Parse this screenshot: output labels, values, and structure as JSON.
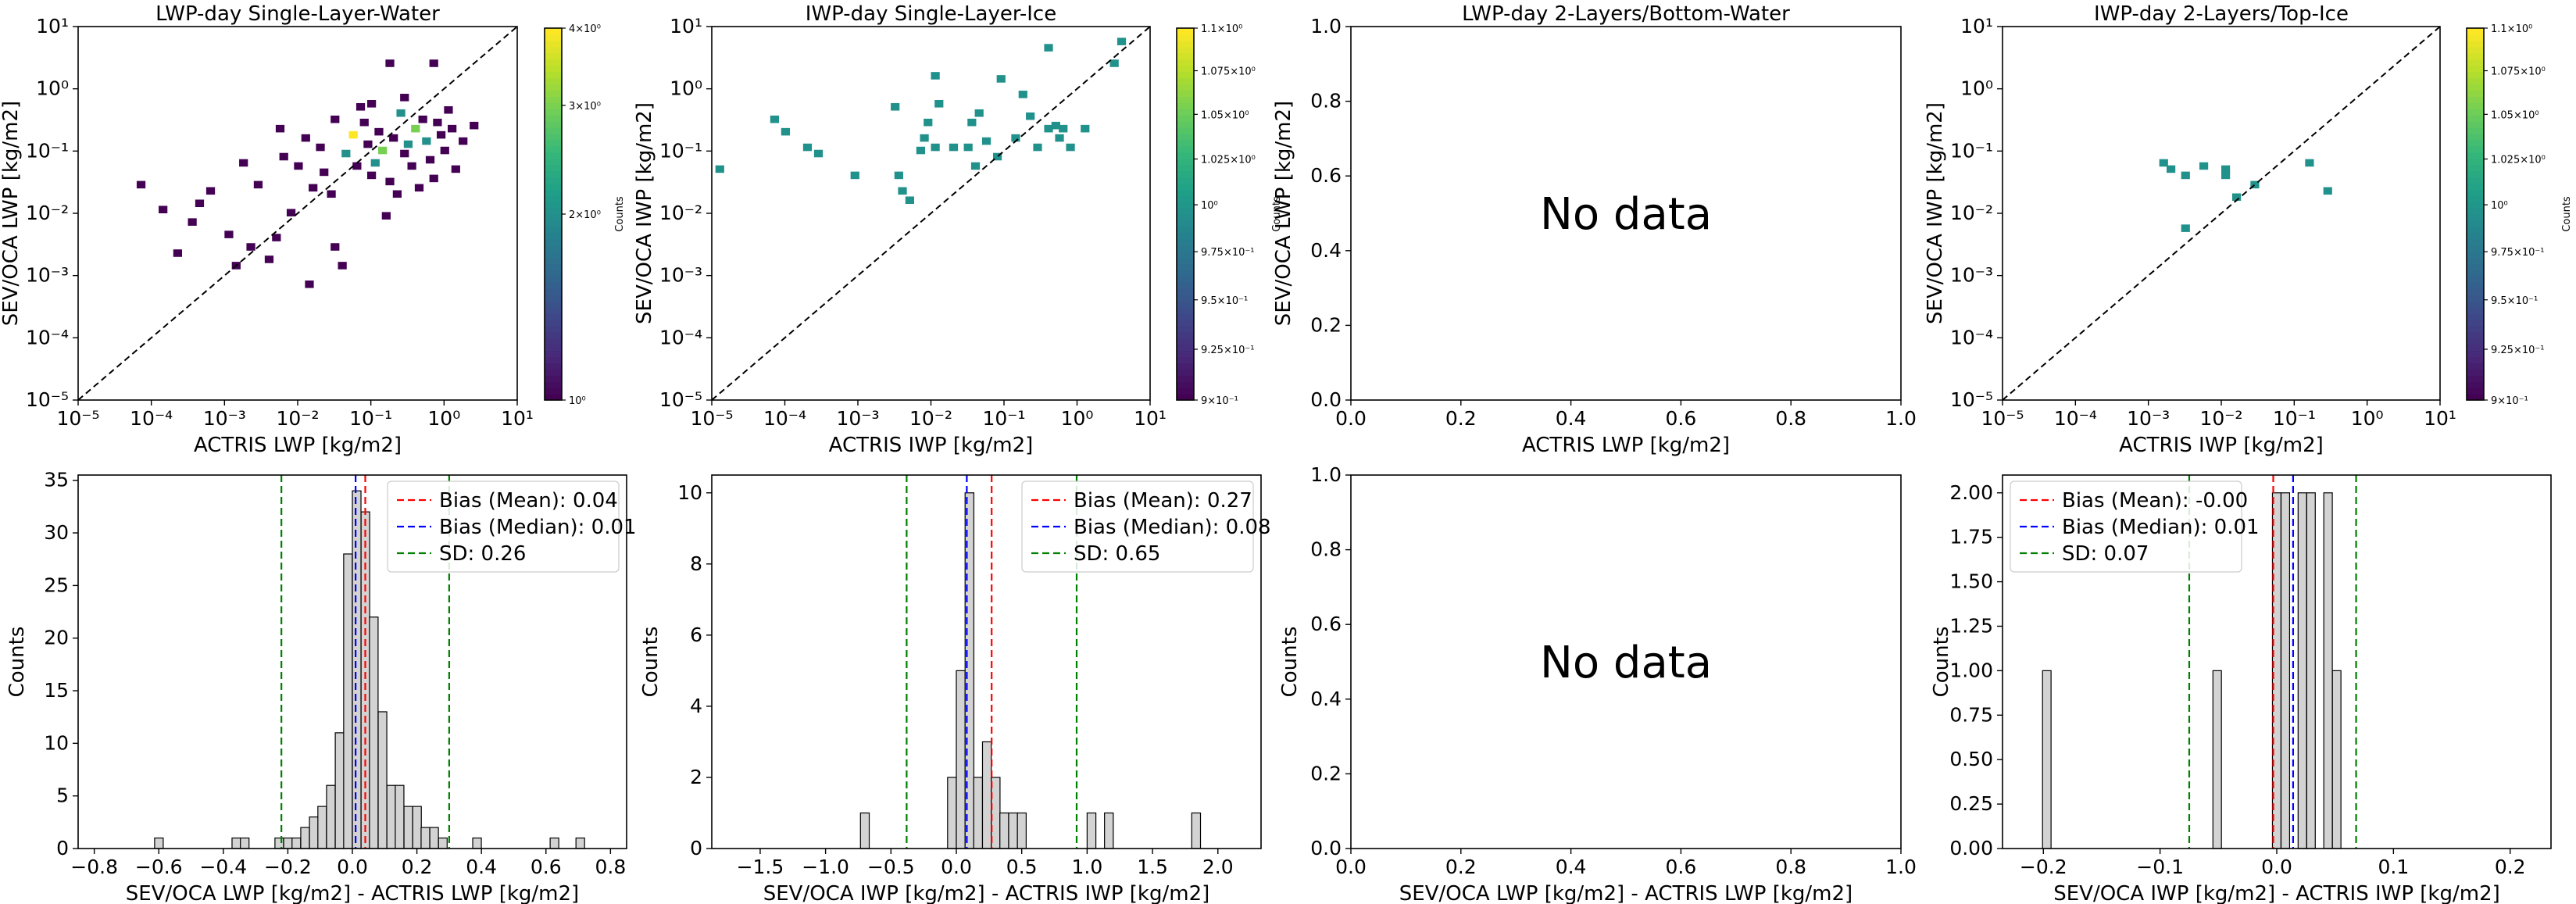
{
  "colors": {
    "viridis": [
      "#440154",
      "#482878",
      "#3e4989",
      "#31688e",
      "#26828e",
      "#1f9e89",
      "#35b779",
      "#6ece58",
      "#b5de2b",
      "#fde725"
    ],
    "mean_line": "#ff0000",
    "median_line": "#0000ff",
    "sd_line": "#008000",
    "hist_fill": "#d3d3d3",
    "hist_edge": "#000000",
    "single_count": "#21918c"
  },
  "chart_data": [
    {
      "id": "p1",
      "type": "heatmap",
      "title": "LWP-day Single-Layer-Water",
      "xlabel": "ACTRIS LWP [kg/m2]",
      "ylabel": "SEV/OCA LWP [kg/m2]",
      "scale": "log",
      "xlim": [
        -5,
        1
      ],
      "ylim": [
        -5,
        1
      ],
      "xtick_labels": [
        "10⁻⁵",
        "10⁻⁴",
        "10⁻³",
        "10⁻²",
        "10⁻¹",
        "10⁰",
        "10¹"
      ],
      "ytick_labels": [
        "10⁻⁵",
        "10⁻⁴",
        "10⁻³",
        "10⁻²",
        "10⁻¹",
        "10⁰",
        "10¹"
      ],
      "identity_line": true,
      "bin_width_log10": 0.12,
      "cells": [
        [
          -4.2,
          -1.6,
          1
        ],
        [
          -3.9,
          -2.0,
          1
        ],
        [
          -3.7,
          -2.7,
          1
        ],
        [
          -3.5,
          -2.2,
          1
        ],
        [
          -3.4,
          -1.9,
          1
        ],
        [
          -3.25,
          -1.7,
          1
        ],
        [
          -3.0,
          -2.4,
          1
        ],
        [
          -2.9,
          -2.9,
          1
        ],
        [
          -2.7,
          -2.6,
          1
        ],
        [
          -2.6,
          -1.6,
          1
        ],
        [
          -2.45,
          -2.8,
          1
        ],
        [
          -2.35,
          -2.45,
          1
        ],
        [
          -2.25,
          -1.15,
          1
        ],
        [
          -2.15,
          -2.05,
          1
        ],
        [
          -2.05,
          -1.3,
          1
        ],
        [
          -1.95,
          -0.85,
          1
        ],
        [
          -1.85,
          -1.65,
          1
        ],
        [
          -1.75,
          -1.0,
          1
        ],
        [
          -1.7,
          -1.4,
          1
        ],
        [
          -1.6,
          -1.75,
          1
        ],
        [
          -1.55,
          -2.6,
          1
        ],
        [
          -1.45,
          -2.9,
          1
        ],
        [
          -1.4,
          -1.1,
          2
        ],
        [
          -1.3,
          -0.8,
          4
        ],
        [
          -1.25,
          -1.3,
          1
        ],
        [
          -1.15,
          -0.6,
          1
        ],
        [
          -1.1,
          -0.95,
          1
        ],
        [
          -1.05,
          -1.45,
          1
        ],
        [
          -1.0,
          -1.25,
          2
        ],
        [
          -0.95,
          -0.75,
          1
        ],
        [
          -0.9,
          -1.05,
          3
        ],
        [
          -0.85,
          -2.1,
          1
        ],
        [
          -0.8,
          -1.55,
          1
        ],
        [
          -0.75,
          -0.85,
          1
        ],
        [
          -0.7,
          -1.75,
          1
        ],
        [
          -0.65,
          -0.45,
          2
        ],
        [
          -0.6,
          -1.1,
          1
        ],
        [
          -0.55,
          -0.95,
          2
        ],
        [
          -0.5,
          -1.3,
          1
        ],
        [
          -0.45,
          -0.7,
          3
        ],
        [
          -0.4,
          -1.65,
          1
        ],
        [
          -0.35,
          -0.55,
          1
        ],
        [
          -0.3,
          -0.9,
          2
        ],
        [
          -0.25,
          -1.2,
          1
        ],
        [
          -0.2,
          -1.5,
          1
        ],
        [
          -0.15,
          -0.6,
          1
        ],
        [
          -0.1,
          -0.8,
          1
        ],
        [
          -0.05,
          -1.05,
          1
        ],
        [
          0.0,
          -0.4,
          1
        ],
        [
          0.05,
          -0.7,
          1
        ],
        [
          0.1,
          -1.35,
          1
        ],
        [
          0.2,
          -0.9,
          1
        ],
        [
          0.35,
          -0.65,
          1
        ],
        [
          -0.8,
          0.35,
          1
        ],
        [
          -1.05,
          -0.3,
          1
        ],
        [
          -1.55,
          -0.55,
          1
        ],
        [
          -2.3,
          -0.7,
          1
        ],
        [
          -1.9,
          -3.2,
          1
        ],
        [
          -2.8,
          -1.25,
          1
        ],
        [
          -0.2,
          0.35,
          1
        ],
        [
          -0.6,
          -0.2,
          1
        ],
        [
          -1.2,
          -0.35,
          1
        ]
      ],
      "colorbar": {
        "label": "Counts",
        "scale": "log",
        "range": [
          1,
          4
        ],
        "tick_values": [
          1,
          2,
          3,
          4
        ],
        "tick_labels": [
          "10⁰",
          "2×10⁰",
          "3×10⁰",
          "4×10⁰"
        ]
      }
    },
    {
      "id": "p2",
      "type": "heatmap",
      "title": "IWP-day Single-Layer-Ice",
      "xlabel": "ACTRIS IWP [kg/m2]",
      "ylabel": "SEV/OCA IWP [kg/m2]",
      "scale": "log",
      "xlim": [
        -5,
        1
      ],
      "ylim": [
        -5,
        1
      ],
      "xtick_labels": [
        "10⁻⁵",
        "10⁻⁴",
        "10⁻³",
        "10⁻²",
        "10⁻¹",
        "10⁰",
        "10¹"
      ],
      "ytick_labels": [
        "10⁻⁵",
        "10⁻⁴",
        "10⁻³",
        "10⁻²",
        "10⁻¹",
        "10⁰",
        "10¹"
      ],
      "identity_line": true,
      "bin_width_log10": 0.12,
      "cells": [
        [
          -4.95,
          -1.35,
          1
        ],
        [
          -4.2,
          -0.55,
          1
        ],
        [
          -4.05,
          -0.75,
          1
        ],
        [
          -3.75,
          -1.0,
          1
        ],
        [
          -3.6,
          -1.1,
          1
        ],
        [
          -3.1,
          -1.45,
          1
        ],
        [
          -2.55,
          -0.35,
          1
        ],
        [
          -2.5,
          -1.45,
          1
        ],
        [
          -2.45,
          -1.7,
          1
        ],
        [
          -2.35,
          -1.85,
          1
        ],
        [
          -2.2,
          -1.05,
          1
        ],
        [
          -2.15,
          -0.85,
          1
        ],
        [
          -2.1,
          -0.6,
          1
        ],
        [
          -2.0,
          -1.0,
          1
        ],
        [
          -2.0,
          0.15,
          1
        ],
        [
          -1.95,
          -0.3,
          1
        ],
        [
          -1.75,
          -1.0,
          1
        ],
        [
          -1.55,
          -1.0,
          1
        ],
        [
          -1.5,
          -0.6,
          1
        ],
        [
          -1.45,
          -1.3,
          1
        ],
        [
          -1.4,
          -0.45,
          1
        ],
        [
          -1.3,
          -0.9,
          1
        ],
        [
          -1.15,
          -1.15,
          1
        ],
        [
          -1.1,
          0.1,
          1
        ],
        [
          -0.9,
          -0.85,
          1
        ],
        [
          -0.8,
          -0.15,
          1
        ],
        [
          -0.7,
          -0.5,
          1
        ],
        [
          -0.6,
          -1.0,
          1
        ],
        [
          -0.45,
          0.6,
          1
        ],
        [
          -0.45,
          -0.7,
          1
        ],
        [
          -0.35,
          -0.65,
          1
        ],
        [
          -0.3,
          -0.85,
          1
        ],
        [
          -0.25,
          -0.7,
          1
        ],
        [
          -0.15,
          -1.0,
          1
        ],
        [
          0.05,
          -0.7,
          1
        ],
        [
          0.45,
          0.35,
          1
        ],
        [
          0.55,
          0.7,
          1
        ]
      ],
      "colorbar": {
        "label": "Counts",
        "scale": "log",
        "range": [
          0.9,
          1.1
        ],
        "tick_values": [
          0.9,
          0.925,
          0.95,
          0.975,
          1.0,
          1.025,
          1.05,
          1.075,
          1.1
        ],
        "tick_labels": [
          "9×10⁻¹",
          "9.25×10⁻¹",
          "9.5×10⁻¹",
          "9.75×10⁻¹",
          "10⁰",
          "1.025×10⁰",
          "1.05×10⁰",
          "1.075×10⁰",
          "1.1×10⁰"
        ]
      }
    },
    {
      "id": "p3",
      "type": "heatmap",
      "title": "LWP-day 2-Layers/Bottom-Water",
      "xlabel": "ACTRIS LWP [kg/m2]",
      "ylabel": "SEV/OCA LWP [kg/m2]",
      "scale": "linear",
      "xlim": [
        0,
        1
      ],
      "ylim": [
        0,
        1
      ],
      "xtick_labels": [
        "0.0",
        "0.2",
        "0.4",
        "0.6",
        "0.8",
        "1.0"
      ],
      "ytick_labels": [
        "0.0",
        "0.2",
        "0.4",
        "0.6",
        "0.8",
        "1.0"
      ],
      "annotation": "No data",
      "cells": []
    },
    {
      "id": "p4",
      "type": "heatmap",
      "title": "IWP-day 2-Layers/Top-Ice",
      "xlabel": "ACTRIS IWP [kg/m2]",
      "ylabel": "SEV/OCA IWP [kg/m2]",
      "scale": "log",
      "xlim": [
        -5,
        1
      ],
      "ylim": [
        -5,
        1
      ],
      "xtick_labels": [
        "10⁻⁵",
        "10⁻⁴",
        "10⁻³",
        "10⁻²",
        "10⁻¹",
        "10⁰",
        "10¹"
      ],
      "ytick_labels": [
        "10⁻⁵",
        "10⁻⁴",
        "10⁻³",
        "10⁻²",
        "10⁻¹",
        "10⁰",
        "10¹"
      ],
      "identity_line": true,
      "bin_width_log10": 0.12,
      "cells": [
        [
          -2.85,
          -1.25,
          1
        ],
        [
          -2.75,
          -1.35,
          1
        ],
        [
          -2.55,
          -1.45,
          1
        ],
        [
          -2.55,
          -2.3,
          1
        ],
        [
          -2.3,
          -1.3,
          1
        ],
        [
          -2.0,
          -1.35,
          1
        ],
        [
          -2.0,
          -1.45,
          1
        ],
        [
          -1.85,
          -1.8,
          1
        ],
        [
          -1.6,
          -1.6,
          1
        ],
        [
          -0.85,
          -1.25,
          1
        ],
        [
          -0.6,
          -1.7,
          1
        ]
      ],
      "colorbar": {
        "label": "Counts",
        "scale": "log",
        "range": [
          0.9,
          1.1
        ],
        "tick_values": [
          0.9,
          0.925,
          0.95,
          0.975,
          1.0,
          1.025,
          1.05,
          1.075,
          1.1
        ],
        "tick_labels": [
          "9×10⁻¹",
          "9.25×10⁻¹",
          "9.5×10⁻¹",
          "9.75×10⁻¹",
          "10⁰",
          "1.025×10⁰",
          "1.05×10⁰",
          "1.075×10⁰",
          "1.1×10⁰"
        ]
      }
    },
    {
      "id": "p5",
      "type": "bar",
      "xlabel": "SEV/OCA LWP [kg/m2] - ACTRIS LWP [kg/m2]",
      "ylabel": "Counts",
      "xlim": [
        -0.85,
        0.85
      ],
      "ylim": [
        0,
        35.5
      ],
      "xticks": [
        -0.8,
        -0.6,
        -0.4,
        -0.2,
        0.0,
        0.2,
        0.4,
        0.6,
        0.8
      ],
      "xtick_labels": [
        "−0.8",
        "−0.6",
        "−0.4",
        "−0.2",
        "0.0",
        "0.2",
        "0.4",
        "0.6",
        "0.8"
      ],
      "yticks": [
        0,
        5,
        10,
        15,
        20,
        25,
        30,
        35
      ],
      "ytick_labels": [
        "0",
        "5",
        "10",
        "15",
        "20",
        "25",
        "30",
        "35"
      ],
      "bin_width": 0.0267,
      "bins": [
        [
          -0.613,
          1
        ],
        [
          -0.373,
          1
        ],
        [
          -0.347,
          1
        ],
        [
          -0.24,
          1
        ],
        [
          -0.213,
          1
        ],
        [
          -0.187,
          1
        ],
        [
          -0.16,
          2
        ],
        [
          -0.133,
          3
        ],
        [
          -0.107,
          4
        ],
        [
          -0.08,
          6
        ],
        [
          -0.053,
          11
        ],
        [
          -0.027,
          28
        ],
        [
          0.0,
          34
        ],
        [
          0.027,
          32
        ],
        [
          0.053,
          22
        ],
        [
          0.08,
          13
        ],
        [
          0.107,
          6
        ],
        [
          0.133,
          6
        ],
        [
          0.16,
          4
        ],
        [
          0.187,
          4
        ],
        [
          0.213,
          2
        ],
        [
          0.24,
          2
        ],
        [
          0.267,
          1
        ],
        [
          0.373,
          1
        ],
        [
          0.613,
          1
        ],
        [
          0.693,
          1
        ]
      ],
      "lines": [
        {
          "label": "Bias (Mean): 0.04",
          "x": 0.04,
          "role": "mean"
        },
        {
          "label": "Bias (Median): 0.01",
          "x": 0.01,
          "role": "median"
        },
        {
          "label": "SD: 0.26",
          "x": -0.22,
          "role": "sd"
        },
        {
          "x": 0.3,
          "role": "sd"
        }
      ],
      "legend": "upper right"
    },
    {
      "id": "p6",
      "type": "bar",
      "xlabel": "SEV/OCA IWP [kg/m2] - ACTRIS IWP [kg/m2]",
      "ylabel": "Counts",
      "xlim": [
        -1.87,
        2.33
      ],
      "ylim": [
        0,
        10.5
      ],
      "xticks": [
        -1.5,
        -1.0,
        -0.5,
        0.0,
        0.5,
        1.0,
        1.5,
        2.0
      ],
      "xtick_labels": [
        "−1.5",
        "−1.0",
        "−0.5",
        "0.0",
        "0.5",
        "1.0",
        "1.5",
        "2.0"
      ],
      "yticks": [
        0,
        2,
        4,
        6,
        8,
        10
      ],
      "ytick_labels": [
        "0",
        "2",
        "4",
        "6",
        "8",
        "10"
      ],
      "bin_width": 0.067,
      "bins": [
        [
          -0.733,
          1
        ],
        [
          -0.067,
          2
        ],
        [
          0.0,
          5
        ],
        [
          0.067,
          10
        ],
        [
          0.133,
          2
        ],
        [
          0.2,
          3
        ],
        [
          0.267,
          2
        ],
        [
          0.333,
          1
        ],
        [
          0.4,
          1
        ],
        [
          0.467,
          1
        ],
        [
          1.0,
          1
        ],
        [
          1.133,
          1
        ],
        [
          1.8,
          1
        ]
      ],
      "lines": [
        {
          "label": "Bias (Mean): 0.27",
          "x": 0.27,
          "role": "mean"
        },
        {
          "label": "Bias (Median): 0.08",
          "x": 0.08,
          "role": "median"
        },
        {
          "label": "SD: 0.65",
          "x": -0.38,
          "role": "sd"
        },
        {
          "x": 0.92,
          "role": "sd"
        }
      ],
      "legend": "upper right"
    },
    {
      "id": "p7",
      "type": "bar",
      "xlabel": "SEV/OCA LWP [kg/m2] - ACTRIS LWP [kg/m2]",
      "ylabel": "Counts",
      "xlim": [
        0,
        1
      ],
      "ylim": [
        0,
        1
      ],
      "xticks": [
        0,
        0.2,
        0.4,
        0.6,
        0.8,
        1.0
      ],
      "xtick_labels": [
        "0.0",
        "0.2",
        "0.4",
        "0.6",
        "0.8",
        "1.0"
      ],
      "yticks": [
        0,
        0.2,
        0.4,
        0.6,
        0.8,
        1.0
      ],
      "ytick_labels": [
        "0.0",
        "0.2",
        "0.4",
        "0.6",
        "0.8",
        "1.0"
      ],
      "annotation": "No data",
      "bins": [],
      "lines": []
    },
    {
      "id": "p8",
      "type": "bar",
      "xlabel": "SEV/OCA IWP [kg/m2] - ACTRIS IWP [kg/m2]",
      "ylabel": "Counts",
      "xlim": [
        -0.235,
        0.235
      ],
      "ylim": [
        0,
        2.1
      ],
      "xticks": [
        -0.2,
        -0.1,
        0.0,
        0.1,
        0.2
      ],
      "xtick_labels": [
        "−0.2",
        "−0.1",
        "0.0",
        "0.1",
        "0.2"
      ],
      "yticks": [
        0,
        0.25,
        0.5,
        0.75,
        1.0,
        1.25,
        1.5,
        1.75,
        2.0
      ],
      "ytick_labels": [
        "0.00",
        "0.25",
        "0.50",
        "0.75",
        "1.00",
        "1.25",
        "1.50",
        "1.75",
        "2.00"
      ],
      "bin_width": 0.0073,
      "bins": [
        [
          -0.2007,
          1
        ],
        [
          -0.0547,
          1
        ],
        [
          -0.0037,
          2
        ],
        [
          0.0037,
          2
        ],
        [
          0.0183,
          2
        ],
        [
          0.0257,
          2
        ],
        [
          0.0403,
          2
        ],
        [
          0.0477,
          1
        ]
      ],
      "lines": [
        {
          "label": "Bias (Mean): -0.00",
          "x": -0.003,
          "role": "mean"
        },
        {
          "label": "Bias (Median): 0.01",
          "x": 0.014,
          "role": "median"
        },
        {
          "label": "SD: 0.07",
          "x": -0.075,
          "role": "sd"
        },
        {
          "x": 0.068,
          "role": "sd"
        }
      ],
      "legend": "upper left"
    }
  ]
}
